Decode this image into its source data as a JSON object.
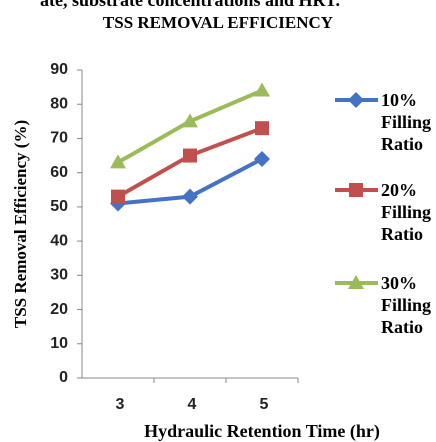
{
  "caption": "ate, substrate concentrations and HRT.",
  "chart_data": {
    "type": "line",
    "title": "TSS REMOVAL EFFICIENCY",
    "x_label": "Hydraulic  Retention Time (hr)",
    "y_label": "TSS Removal Efficiency (%)",
    "categories": [
      "3",
      "4",
      "5"
    ],
    "series": [
      {
        "name": "10% Filling Ratio",
        "color": "#4472c4",
        "marker": "diamond",
        "values": [
          51,
          53,
          64
        ]
      },
      {
        "name": "20% Filling Ratio",
        "color": "#c0504d",
        "marker": "square",
        "values": [
          53,
          65,
          73
        ]
      },
      {
        "name": "30% Filling Ratio",
        "color": "#9bbb59",
        "marker": "triangle",
        "values": [
          63,
          75,
          84
        ]
      }
    ],
    "ylim": [
      0,
      90
    ],
    "yticks": [
      0,
      10,
      20,
      30,
      40,
      50,
      60,
      70,
      80,
      90
    ],
    "grid": false,
    "legend": "right"
  }
}
